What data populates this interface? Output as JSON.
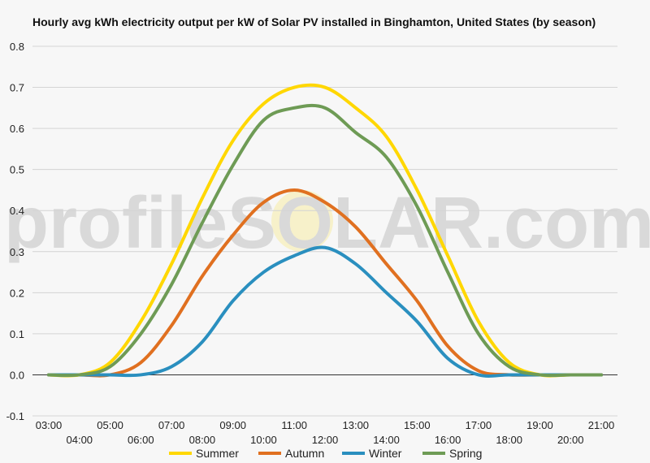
{
  "chart_data": {
    "type": "line",
    "title": "Hourly avg kWh electricity output per kW of Solar PV installed in Binghamton, United States (by season)",
    "xlabel": "",
    "ylabel": "",
    "ylim": [
      -0.1,
      0.8
    ],
    "yticks": [
      "-0.1",
      "0.0",
      "0.1",
      "0.2",
      "0.3",
      "0.4",
      "0.5",
      "0.6",
      "0.7",
      "0.8"
    ],
    "x": [
      "03:00",
      "04:00",
      "05:00",
      "06:00",
      "07:00",
      "08:00",
      "09:00",
      "10:00",
      "11:00",
      "12:00",
      "13:00",
      "14:00",
      "15:00",
      "16:00",
      "17:00",
      "18:00",
      "19:00",
      "20:00",
      "21:00"
    ],
    "grid": true,
    "legend_position": "bottom",
    "series": [
      {
        "name": "Summer",
        "color": "#FFD700",
        "values": [
          0.0,
          0.0,
          0.03,
          0.13,
          0.27,
          0.43,
          0.57,
          0.66,
          0.7,
          0.7,
          0.65,
          0.58,
          0.45,
          0.29,
          0.13,
          0.03,
          0.0,
          0.0,
          0.0
        ]
      },
      {
        "name": "Autumn",
        "color": "#E07020",
        "values": [
          0.0,
          0.0,
          0.0,
          0.03,
          0.12,
          0.24,
          0.34,
          0.42,
          0.45,
          0.42,
          0.36,
          0.27,
          0.18,
          0.07,
          0.01,
          0.0,
          0.0,
          0.0,
          0.0
        ]
      },
      {
        "name": "Winter",
        "color": "#2A8FBF",
        "values": [
          0.0,
          0.0,
          0.0,
          0.0,
          0.02,
          0.08,
          0.18,
          0.25,
          0.29,
          0.31,
          0.27,
          0.2,
          0.13,
          0.04,
          0.0,
          0.0,
          0.0,
          0.0,
          0.0
        ]
      },
      {
        "name": "Spring",
        "color": "#6E9B55",
        "values": [
          0.0,
          0.0,
          0.02,
          0.1,
          0.22,
          0.37,
          0.51,
          0.62,
          0.65,
          0.65,
          0.59,
          0.53,
          0.41,
          0.25,
          0.1,
          0.02,
          0.0,
          0.0,
          0.0
        ]
      }
    ],
    "watermark": "profileSOLAR.com"
  }
}
